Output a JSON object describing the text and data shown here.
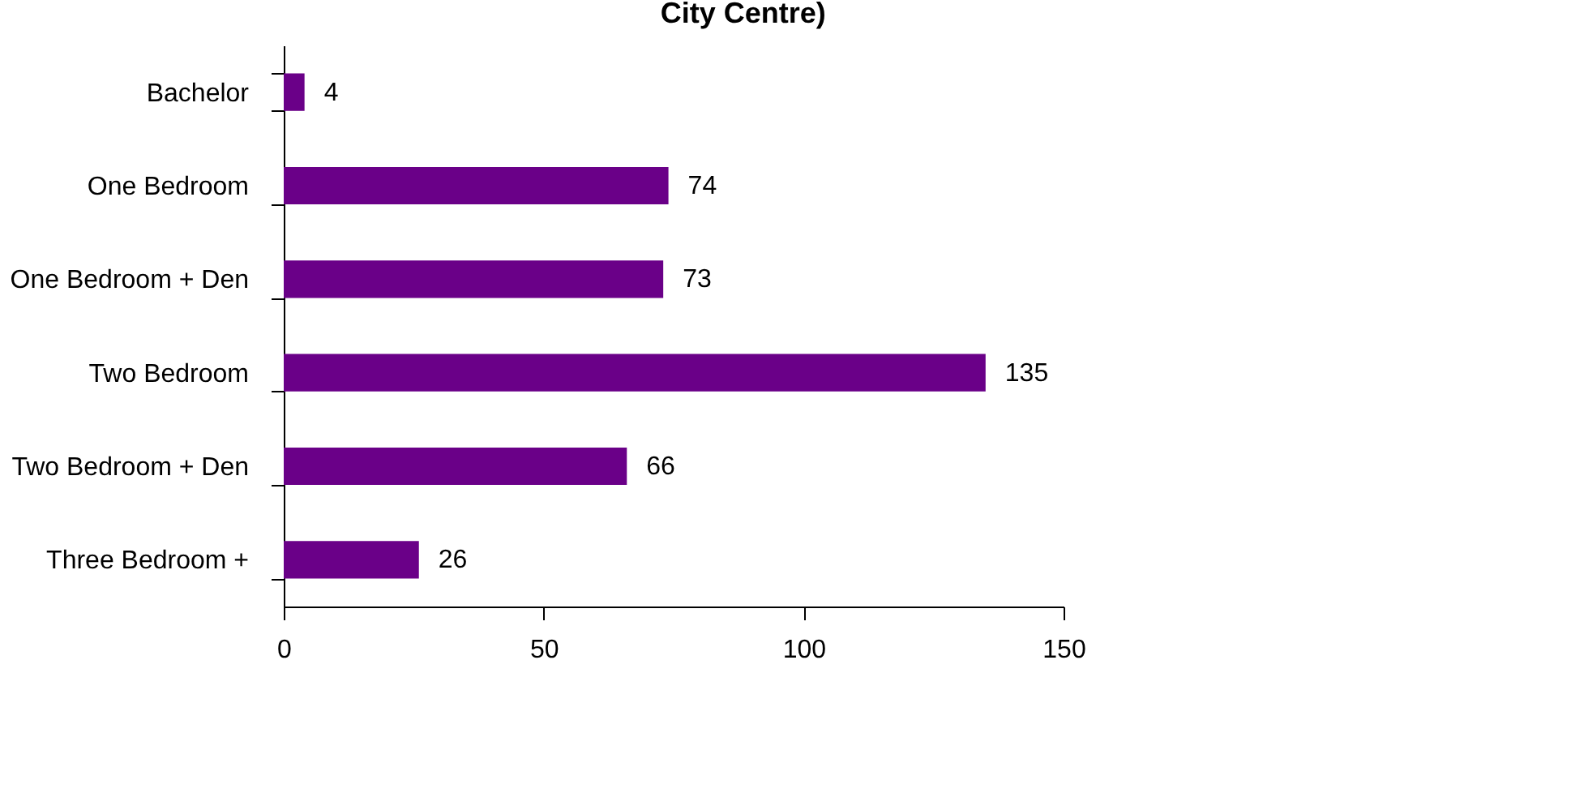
{
  "chart_data": {
    "type": "bar",
    "orientation": "horizontal",
    "title": "City Centre)",
    "categories": [
      "Bachelor",
      "One Bedroom",
      "One Bedroom + Den",
      "Two Bedroom",
      "Two Bedroom + Den",
      "Three Bedroom +"
    ],
    "values": [
      4,
      74,
      73,
      135,
      66,
      26
    ],
    "color": "#6a0088",
    "xlim": [
      0,
      150
    ],
    "xticks": [
      0,
      50,
      100,
      150
    ],
    "grid": false,
    "data_labels": true
  }
}
